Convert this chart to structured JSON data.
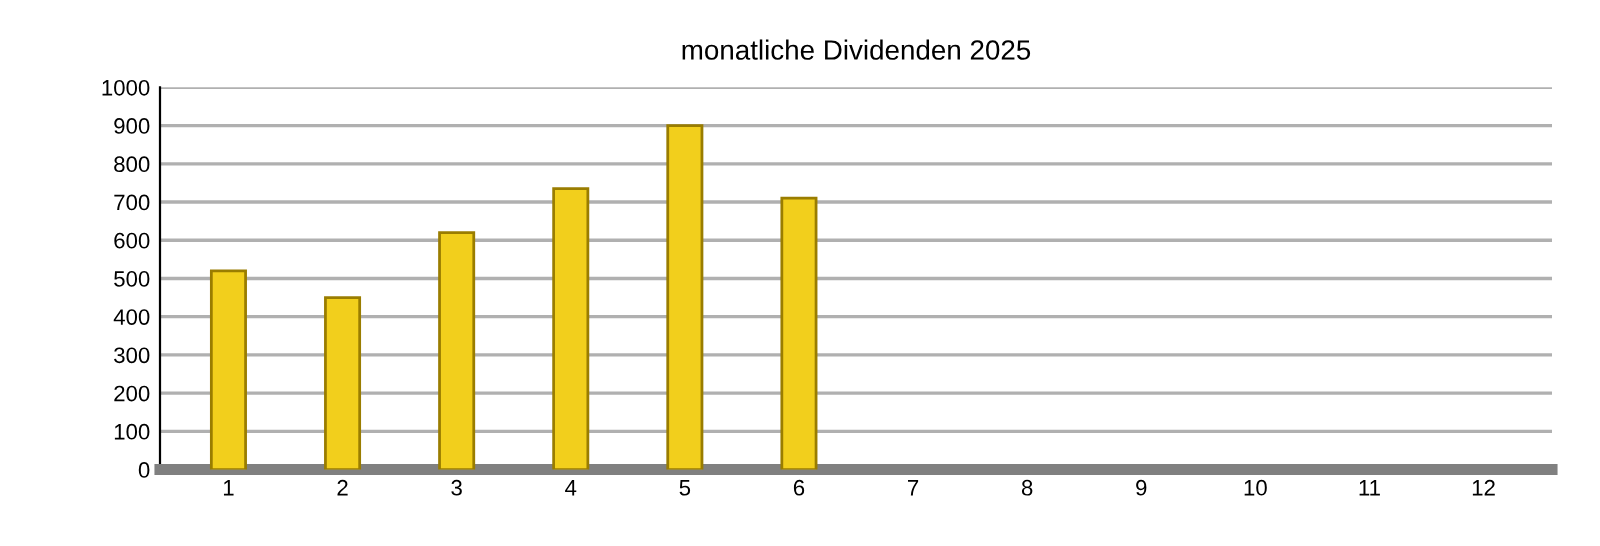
{
  "chart_data": {
    "type": "bar",
    "title": "monatliche Dividenden 2025",
    "categories": [
      "1",
      "2",
      "3",
      "4",
      "5",
      "6",
      "7",
      "8",
      "9",
      "10",
      "11",
      "12"
    ],
    "values": [
      520,
      450,
      620,
      735,
      900,
      710,
      null,
      null,
      null,
      null,
      null,
      null
    ],
    "color": "#f2cf1c",
    "ylim": [
      0,
      1000
    ],
    "yticks": [
      0,
      100,
      200,
      300,
      400,
      500,
      600,
      700,
      800,
      900,
      1000
    ],
    "grid": "y"
  }
}
